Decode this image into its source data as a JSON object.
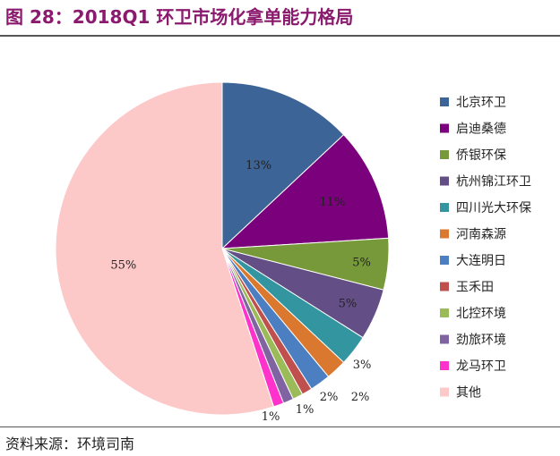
{
  "title": "图 28：2018Q1 环卫市场化拿单能力格局",
  "source": "资料来源：环境司南",
  "chart_data": {
    "type": "pie",
    "start_angle_deg": 0,
    "direction": "clockwise",
    "legend_position": "right",
    "slices": [
      {
        "name": "北京环卫",
        "value": 13,
        "label": "13%",
        "color": "#3d6496"
      },
      {
        "name": "启迪桑德",
        "value": 11,
        "label": "11%",
        "color": "#7b007b"
      },
      {
        "name": "侨银环保",
        "value": 5,
        "label": "5%",
        "color": "#77993a"
      },
      {
        "name": "杭州锦江环卫",
        "value": 5,
        "label": "5%",
        "color": "#634f86"
      },
      {
        "name": "四川光大环保",
        "value": 3,
        "label": "3%",
        "color": "#33959f"
      },
      {
        "name": "河南森源",
        "value": 2,
        "label": "2%",
        "color": "#d9782e"
      },
      {
        "name": "大连明日",
        "value": 2,
        "label": "2%",
        "color": "#4c7fc1"
      },
      {
        "name": "玉禾田",
        "value": 1,
        "label": "",
        "color": "#c0504d"
      },
      {
        "name": "北控环境",
        "value": 1,
        "label": "1%",
        "color": "#9bbb59"
      },
      {
        "name": "劲旅环境",
        "value": 1,
        "label": "",
        "color": "#8064a2"
      },
      {
        "name": "龙马环卫",
        "value": 1,
        "label": "1%",
        "color": "#ff33cc"
      },
      {
        "name": "其他",
        "value": 55,
        "label": "55%",
        "color": "#fcc8c8"
      }
    ]
  }
}
